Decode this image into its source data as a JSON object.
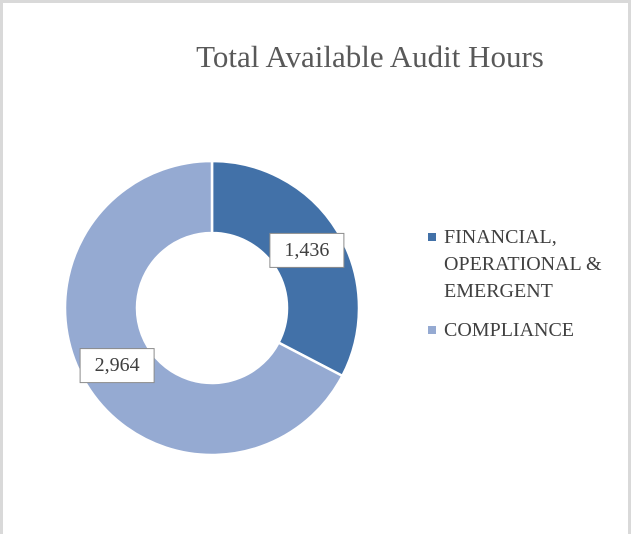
{
  "chart_data": {
    "type": "pie",
    "title": "Total Available Audit Hours",
    "categories": [
      "FINANCIAL, OPERATIONAL & EMERGENT",
      "COMPLIANCE"
    ],
    "values": [
      1436,
      2964
    ],
    "value_labels": [
      "1,436",
      "2,964"
    ],
    "colors": [
      "#4271a8",
      "#95aad2"
    ],
    "donut": true,
    "legend": "right"
  }
}
